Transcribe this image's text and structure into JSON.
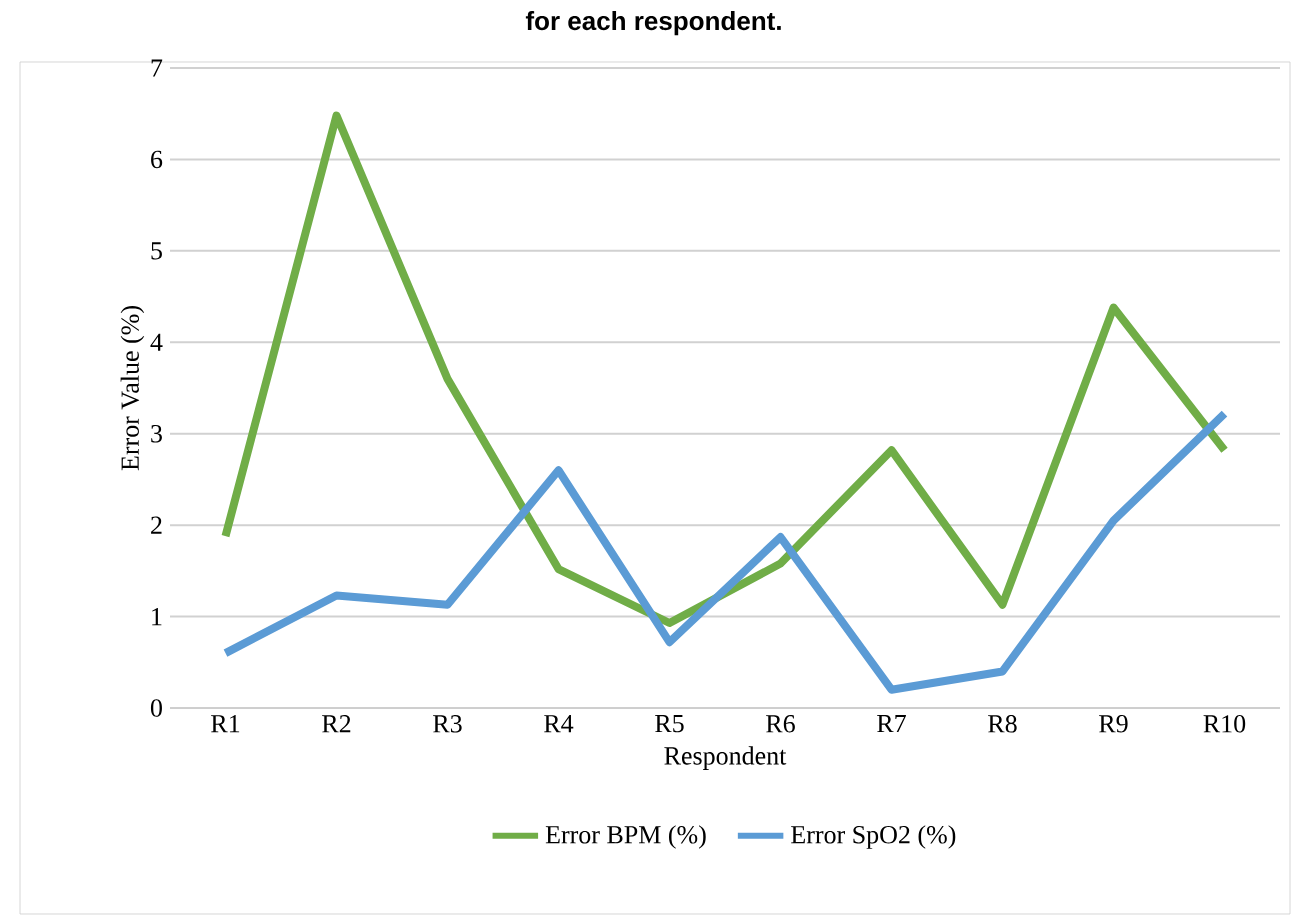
{
  "chart_data": {
    "type": "line",
    "title": "for each respondent.",
    "xlabel": "Respondent",
    "ylabel": "Error Value (%)",
    "categories": [
      "R1",
      "R2",
      "R3",
      "R4",
      "R5",
      "R6",
      "R7",
      "R8",
      "R9",
      "R10"
    ],
    "series": [
      {
        "name": "Error BPM (%)",
        "color": "#70ad47",
        "values": [
          1.88,
          6.48,
          3.6,
          1.52,
          0.93,
          1.58,
          2.82,
          1.13,
          4.38,
          2.82
        ]
      },
      {
        "name": "Error SpO2 (%)",
        "color": "#5b9bd5",
        "values": [
          0.6,
          1.23,
          1.13,
          2.6,
          0.72,
          1.87,
          0.2,
          0.4,
          2.05,
          3.22
        ]
      }
    ],
    "ylim": [
      0,
      7
    ],
    "yticks": [
      0,
      1,
      2,
      3,
      4,
      5,
      6,
      7
    ],
    "grid": "y",
    "legend": "bottom",
    "marker": "none",
    "line_style": "solid"
  }
}
